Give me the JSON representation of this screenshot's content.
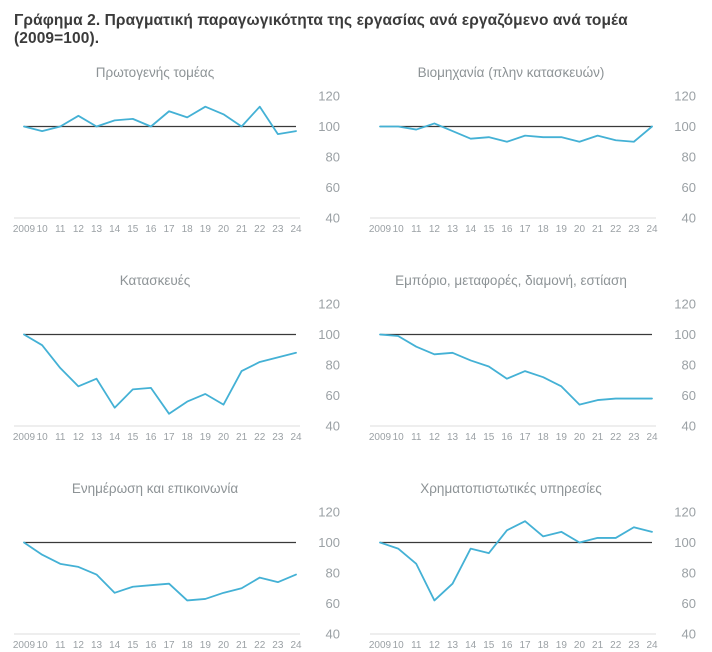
{
  "figure_title": "Γράφημα 2. Πραγματική παραγωγικότητα της εργασίας ανά εργαζόμενο ανά τομέα (2009=100).",
  "axes": {
    "x_labels": [
      "2009",
      "10",
      "11",
      "12",
      "13",
      "14",
      "15",
      "16",
      "17",
      "18",
      "19",
      "20",
      "21",
      "22",
      "23",
      "24"
    ],
    "y_ticks": [
      120,
      100,
      80,
      60,
      40
    ],
    "y_min": 40,
    "y_max": 120,
    "reference_value": 100,
    "grid": "off",
    "y_axis_side": "right"
  },
  "colors": {
    "series_line": "#44b1d5",
    "reference_line": "#3a3a3a",
    "axis_baseline": "#dcdddd",
    "tick_label": "#9ba1a5",
    "panel_title": "#8d9396",
    "figure_title": "#3b3b3b",
    "background": "#ffffff"
  },
  "chart_data": [
    {
      "type": "line",
      "title": "Πρωτογενής τομέας",
      "categories": [
        "2009",
        "10",
        "11",
        "12",
        "13",
        "14",
        "15",
        "16",
        "17",
        "18",
        "19",
        "20",
        "21",
        "22",
        "23",
        "24"
      ],
      "values": [
        100,
        97,
        100,
        107,
        100,
        104,
        105,
        100,
        110,
        106,
        113,
        108,
        100,
        113,
        95,
        97
      ],
      "ylim": [
        40,
        120
      ],
      "reference_line": 100
    },
    {
      "type": "line",
      "title": "Βιομηχανία (πλην κατασκευών)",
      "categories": [
        "2009",
        "10",
        "11",
        "12",
        "13",
        "14",
        "15",
        "16",
        "17",
        "18",
        "19",
        "20",
        "21",
        "22",
        "23",
        "24"
      ],
      "values": [
        100,
        100,
        98,
        102,
        97,
        92,
        93,
        90,
        94,
        93,
        93,
        90,
        94,
        91,
        90,
        100
      ],
      "ylim": [
        40,
        120
      ],
      "reference_line": 100
    },
    {
      "type": "line",
      "title": "Κατασκευές",
      "categories": [
        "2009",
        "10",
        "11",
        "12",
        "13",
        "14",
        "15",
        "16",
        "17",
        "18",
        "19",
        "20",
        "21",
        "22",
        "23",
        "24"
      ],
      "values": [
        100,
        93,
        78,
        66,
        71,
        52,
        64,
        65,
        48,
        56,
        61,
        54,
        76,
        82,
        85,
        88
      ],
      "ylim": [
        40,
        120
      ],
      "reference_line": 100
    },
    {
      "type": "line",
      "title": "Εμπόριο, μεταφορές, διαμονή, εστίαση",
      "categories": [
        "2009",
        "10",
        "11",
        "12",
        "13",
        "14",
        "15",
        "16",
        "17",
        "18",
        "19",
        "20",
        "21",
        "22",
        "23",
        "24"
      ],
      "values": [
        100,
        99,
        92,
        87,
        88,
        83,
        79,
        71,
        76,
        72,
        66,
        54,
        57,
        58,
        58,
        58
      ],
      "ylim": [
        40,
        120
      ],
      "reference_line": 100
    },
    {
      "type": "line",
      "title": "Ενημέρωση και επικοινωνία",
      "categories": [
        "2009",
        "10",
        "11",
        "12",
        "13",
        "14",
        "15",
        "16",
        "17",
        "18",
        "19",
        "20",
        "21",
        "22",
        "23",
        "24"
      ],
      "values": [
        100,
        92,
        86,
        84,
        79,
        67,
        71,
        72,
        73,
        62,
        63,
        67,
        70,
        77,
        74,
        79
      ],
      "ylim": [
        40,
        120
      ],
      "reference_line": 100
    },
    {
      "type": "line",
      "title": "Χρηματοπιστωτικές υπηρεσίες",
      "categories": [
        "2009",
        "10",
        "11",
        "12",
        "13",
        "14",
        "15",
        "16",
        "17",
        "18",
        "19",
        "20",
        "21",
        "22",
        "23",
        "24"
      ],
      "values": [
        100,
        96,
        86,
        62,
        73,
        96,
        93,
        108,
        114,
        104,
        107,
        100,
        103,
        103,
        110,
        107
      ],
      "ylim": [
        40,
        120
      ],
      "reference_line": 100
    }
  ]
}
